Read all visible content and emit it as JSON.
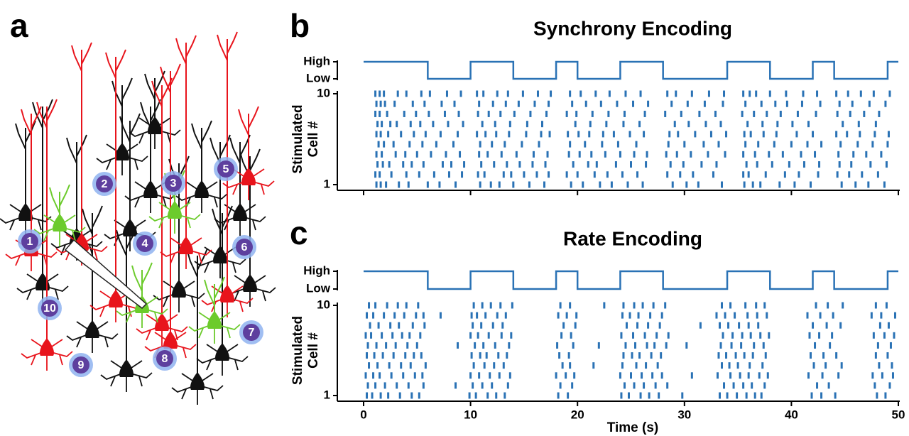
{
  "panel_labels": [
    "a",
    "b",
    "c"
  ],
  "diagram": {
    "cells": [
      1,
      2,
      3,
      4,
      5,
      6,
      7,
      8,
      9,
      10
    ]
  },
  "chart_data": [
    {
      "type": "raster",
      "title": "Synchrony Encoding",
      "ylabel": [
        "Stimulated",
        "Cell #"
      ],
      "color": "#2a72b5",
      "xtick_labels": false,
      "stimulus": {
        "x": [
          0,
          6,
          10,
          14,
          18,
          20,
          24,
          28,
          34,
          38,
          42,
          44,
          49,
          50
        ],
        "values": [
          1,
          0,
          1,
          0,
          1,
          0,
          1,
          0,
          1,
          0,
          1,
          0,
          1,
          1
        ],
        "ylim": [
          0,
          1
        ],
        "yticks": [
          {
            "value": 1,
            "label": "High"
          },
          {
            "value": 0,
            "label": "Low"
          }
        ]
      },
      "xlim": [
        0,
        50
      ],
      "xticks": [
        0,
        10,
        20,
        30,
        40,
        50
      ],
      "ylim": [
        1,
        10
      ],
      "yticks": [
        1,
        10
      ],
      "spikes": [
        [
          1.2,
          1.6,
          2.1,
          3.3,
          4.2,
          6.0,
          7.1,
          8.6,
          10.9,
          11.9,
          12.7,
          14.0,
          15.5,
          16.9,
          19.4,
          20.5,
          22.1,
          23.2,
          24.7,
          26.1,
          28.9,
          30.2,
          31.3,
          33.5,
          35.6,
          36.4,
          37.1,
          38.9,
          40.3,
          41.8,
          44.7,
          46.0,
          47.2,
          48.7
        ],
        [
          1.1,
          1.5,
          2.6,
          4.0,
          5.2,
          6.6,
          8.0,
          9.2,
          10.7,
          11.3,
          13.1,
          13.8,
          15.0,
          16.2,
          17.3,
          19.0,
          20.0,
          21.6,
          22.8,
          24.2,
          25.6,
          28.4,
          29.6,
          30.8,
          32.7,
          35.5,
          36.0,
          37.6,
          39.4,
          40.7,
          42.5,
          44.3,
          45.4,
          46.6,
          48.1
        ],
        [
          1.3,
          1.8,
          2.4,
          3.7,
          4.5,
          5.6,
          7.4,
          8.2,
          9.4,
          11.0,
          12.2,
          13.4,
          14.6,
          15.8,
          17.0,
          19.6,
          21.0,
          21.8,
          23.6,
          25.0,
          26.4,
          28.7,
          29.9,
          31.6,
          33.0,
          35.8,
          36.8,
          38.2,
          39.8,
          41.2,
          42.6,
          44.5,
          45.6,
          47.4,
          48.9
        ],
        [
          1.2,
          1.7,
          3.0,
          3.9,
          5.0,
          6.3,
          7.7,
          9.0,
          10.8,
          11.6,
          12.9,
          14.3,
          15.9,
          17.2,
          19.2,
          20.2,
          21.3,
          22.6,
          24.0,
          25.3,
          26.5,
          28.3,
          29.3,
          30.6,
          32.2,
          33.8,
          35.5,
          36.6,
          37.9,
          39.2,
          40.9,
          42.2,
          44.4,
          45.8,
          47.0,
          48.4
        ],
        [
          1.4,
          1.9,
          2.8,
          4.3,
          5.5,
          6.8,
          8.4,
          10.9,
          12.0,
          13.2,
          14.8,
          16.4,
          19.3,
          20.7,
          22.3,
          23.8,
          25.5,
          28.5,
          30.0,
          31.8,
          33.2,
          35.7,
          36.9,
          38.4,
          40.0,
          41.5,
          42.8,
          44.6,
          46.2,
          47.6,
          49.0
        ],
        [
          1.2,
          1.6,
          2.3,
          3.5,
          4.7,
          5.8,
          7.2,
          8.8,
          10.6,
          11.4,
          12.4,
          13.6,
          15.2,
          16.6,
          17.4,
          19.1,
          20.1,
          21.1,
          22.4,
          23.4,
          24.9,
          26.2,
          28.6,
          29.4,
          31.0,
          32.5,
          33.9,
          35.6,
          36.2,
          37.4,
          38.6,
          40.5,
          42.0,
          44.2,
          45.2,
          46.4,
          47.8,
          49.1
        ],
        [
          1.3,
          1.7,
          2.5,
          3.1,
          4.4,
          5.3,
          6.5,
          7.9,
          9.3,
          11.1,
          12.3,
          13.7,
          15.3,
          16.7,
          19.8,
          21.2,
          22.7,
          24.3,
          25.8,
          29.1,
          30.4,
          32.0,
          33.4,
          35.9,
          37.3,
          38.7,
          40.1,
          41.6,
          44.8,
          46.3,
          47.9
        ],
        [
          1.1,
          1.5,
          2.2,
          3.8,
          4.9,
          6.1,
          7.6,
          8.9,
          10.7,
          11.7,
          12.8,
          14.1,
          15.6,
          17.1,
          19.0,
          19.9,
          21.4,
          22.9,
          24.4,
          26.3,
          28.2,
          29.7,
          31.4,
          32.9,
          35.4,
          36.5,
          37.7,
          39.0,
          40.6,
          42.3,
          44.3,
          45.5,
          46.8,
          48.2
        ],
        [
          1.2,
          1.6,
          2.0,
          2.9,
          4.6,
          5.7,
          7.3,
          8.5,
          10.8,
          12.1,
          13.3,
          14.5,
          16.0,
          17.3,
          19.5,
          20.8,
          22.2,
          23.7,
          25.2,
          26.6,
          28.8,
          30.3,
          31.9,
          33.6,
          35.7,
          37.2,
          38.5,
          39.6,
          41.0,
          42.7,
          44.5,
          45.7,
          47.3,
          48.8
        ],
        [
          1.1,
          1.5,
          1.9,
          3.2,
          4.0,
          5.4,
          6.2,
          7.8,
          9.1,
          10.6,
          11.2,
          12.5,
          13.5,
          14.9,
          16.3,
          17.5,
          19.3,
          20.3,
          21.7,
          23.0,
          24.5,
          25.9,
          28.4,
          29.2,
          30.7,
          32.3,
          33.7,
          35.5,
          36.1,
          36.7,
          38.0,
          39.5,
          41.1,
          42.4,
          44.2,
          45.3,
          46.5,
          47.7,
          49.2
        ]
      ]
    },
    {
      "type": "raster",
      "title": "Rate Encoding",
      "ylabel": [
        "Stimulated",
        "Cell #"
      ],
      "xlabel": "Time (s)",
      "color": "#2a72b5",
      "xtick_labels": true,
      "stimulus": {
        "x": [
          0,
          6,
          10,
          14,
          18,
          20,
          24,
          28,
          34,
          38,
          42,
          44,
          49,
          50
        ],
        "values": [
          1,
          0,
          1,
          0,
          1,
          0,
          1,
          0,
          1,
          0,
          1,
          0,
          1,
          1
        ],
        "ylim": [
          0,
          1
        ],
        "yticks": [
          {
            "value": 1,
            "label": "High"
          },
          {
            "value": 0,
            "label": "Low"
          }
        ]
      },
      "xlim": [
        0,
        50
      ],
      "xticks": [
        0,
        10,
        20,
        30,
        40,
        50
      ],
      "ylim": [
        1,
        10
      ],
      "yticks": [
        1,
        10
      ],
      "spikes": [
        [
          0.3,
          0.8,
          1.6,
          2.3,
          3.4,
          4.5,
          5.2,
          9.9,
          10.5,
          11.6,
          12.4,
          13.2,
          18.2,
          19.1,
          24.1,
          24.8,
          25.9,
          26.7,
          27.6,
          29.8,
          33.3,
          34.0,
          34.9,
          35.8,
          36.6,
          37.2,
          41.9,
          42.8,
          44.1,
          48.0,
          48.8
        ],
        [
          0.4,
          1.1,
          2.0,
          3.1,
          4.2,
          5.6,
          8.6,
          10.2,
          11.1,
          12.0,
          13.5,
          18.4,
          19.5,
          24.4,
          25.3,
          26.2,
          27.3,
          28.4,
          33.7,
          34.6,
          35.5,
          36.3,
          37.5,
          42.4,
          43.5,
          47.8,
          49.2
        ],
        [
          0.2,
          0.9,
          1.5,
          2.6,
          3.7,
          4.8,
          5.5,
          10.0,
          10.8,
          11.8,
          12.7,
          13.7,
          18.0,
          18.9,
          19.7,
          24.0,
          25.0,
          26.0,
          27.0,
          27.9,
          30.7,
          33.1,
          34.3,
          35.2,
          36.0,
          37.0,
          37.8,
          41.6,
          42.9,
          44.4,
          47.6,
          48.5,
          49.5
        ],
        [
          0.5,
          1.3,
          2.4,
          3.5,
          4.4,
          5.8,
          10.3,
          11.3,
          12.2,
          13.1,
          18.6,
          19.3,
          21.5,
          24.2,
          25.5,
          26.4,
          27.5,
          33.5,
          34.2,
          35.0,
          36.1,
          37.3,
          42.1,
          43.2,
          44.7,
          48.2,
          49.4
        ],
        [
          0.3,
          1.0,
          1.8,
          2.8,
          3.9,
          4.7,
          5.4,
          10.1,
          10.9,
          11.5,
          12.6,
          13.4,
          18.3,
          19.2,
          24.3,
          25.1,
          25.8,
          26.9,
          27.8,
          33.2,
          33.9,
          34.8,
          35.6,
          36.4,
          37.6,
          41.8,
          43.0,
          44.2,
          47.9,
          49.0
        ],
        [
          0.4,
          1.2,
          2.1,
          3.0,
          4.1,
          5.0,
          8.8,
          10.4,
          11.2,
          12.3,
          13.6,
          18.1,
          19.6,
          22.0,
          24.5,
          25.4,
          26.5,
          27.2,
          28.3,
          30.2,
          33.4,
          34.4,
          35.3,
          36.5,
          37.4,
          42.2,
          43.6,
          48.1,
          49.3
        ],
        [
          0.2,
          0.7,
          1.7,
          2.7,
          3.6,
          4.3,
          5.3,
          10.0,
          10.7,
          11.7,
          12.9,
          13.8,
          18.5,
          19.4,
          24.1,
          25.2,
          26.3,
          27.4,
          28.5,
          33.6,
          34.5,
          35.4,
          36.2,
          37.1,
          37.9,
          41.7,
          42.6,
          43.8,
          47.7,
          48.7,
          49.6
        ],
        [
          0.6,
          1.4,
          2.5,
          3.3,
          4.6,
          5.7,
          10.2,
          11.0,
          12.1,
          13.0,
          18.7,
          19.8,
          24.6,
          25.6,
          26.6,
          27.7,
          31.5,
          33.3,
          34.1,
          35.1,
          36.0,
          36.9,
          42.0,
          43.3,
          44.6,
          48.3,
          49.1
        ],
        [
          0.3,
          0.9,
          1.9,
          2.9,
          3.8,
          4.9,
          5.6,
          7.2,
          10.1,
          10.6,
          11.4,
          12.5,
          13.3,
          18.2,
          19.0,
          19.9,
          24.2,
          24.9,
          25.7,
          26.8,
          27.9,
          33.0,
          33.8,
          34.7,
          35.9,
          36.8,
          37.7,
          41.5,
          42.7,
          43.9,
          47.5,
          48.4,
          49.7
        ],
        [
          0.5,
          1.1,
          2.2,
          3.2,
          4.0,
          5.1,
          10.3,
          11.1,
          11.9,
          12.8,
          13.9,
          18.4,
          19.3,
          22.5,
          24.3,
          25.3,
          26.1,
          27.1,
          28.2,
          33.5,
          34.3,
          35.7,
          36.7,
          37.5,
          42.3,
          43.4,
          44.8,
          47.9,
          48.9
        ]
      ]
    }
  ]
}
